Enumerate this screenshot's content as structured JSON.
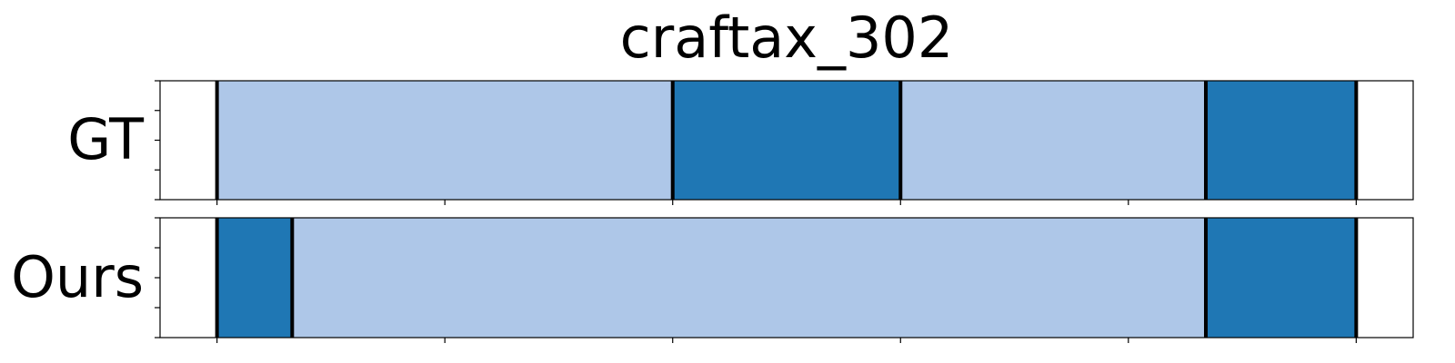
{
  "chart_data": {
    "type": "segmentation-timeline",
    "title": "craftax_302",
    "colors": {
      "light": "#aec7e8",
      "dark": "#1f77b4",
      "boundary": "#000000"
    },
    "xlim": [
      -25,
      525
    ],
    "rows": [
      {
        "name": "GT",
        "segments": [
          {
            "start": 0,
            "end": 200,
            "class": "light"
          },
          {
            "start": 200,
            "end": 300,
            "class": "dark"
          },
          {
            "start": 300,
            "end": 434,
            "class": "light"
          },
          {
            "start": 434,
            "end": 500,
            "class": "dark"
          }
        ]
      },
      {
        "name": "Ours",
        "segments": [
          {
            "start": 0,
            "end": 33,
            "class": "dark"
          },
          {
            "start": 33,
            "end": 434,
            "class": "light"
          },
          {
            "start": 434,
            "end": 500,
            "class": "dark"
          }
        ]
      }
    ],
    "x_ticks": [
      0,
      100,
      200,
      300,
      400,
      500
    ],
    "y_minor_ticks": 5
  }
}
